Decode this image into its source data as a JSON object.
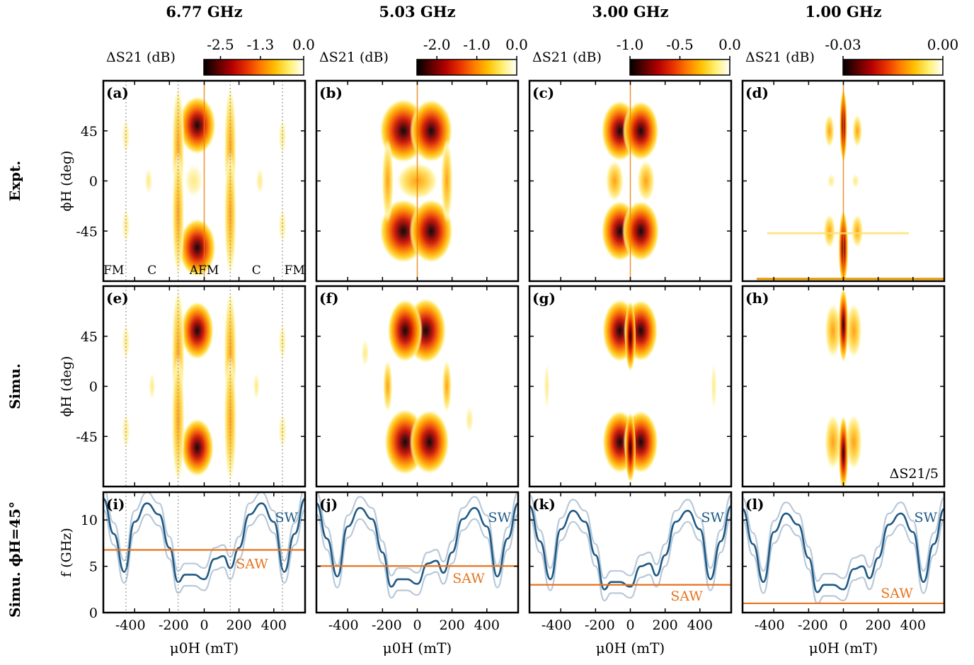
{
  "columns": [
    {
      "freq_label": "6.77 GHz",
      "cbar_label": "ΔS21 (dB)",
      "cbar_ticks": [
        "-2.5",
        "-1.3",
        "0.0"
      ],
      "cbar_range": [
        -3.0,
        0.0
      ],
      "saw_ghz": 6.77
    },
    {
      "freq_label": "5.03 GHz",
      "cbar_label": "ΔS21 (dB)",
      "cbar_ticks": [
        "-2.0",
        "-1.0",
        "0.0"
      ],
      "cbar_range": [
        -2.5,
        0.0
      ],
      "saw_ghz": 5.03
    },
    {
      "freq_label": "3.00 GHz",
      "cbar_label": "ΔS21 (dB)",
      "cbar_ticks": [
        "-1.0",
        "-0.5",
        "0.0"
      ],
      "cbar_range": [
        -1.0,
        0.0
      ],
      "saw_ghz": 3.0
    },
    {
      "freq_label": "1.00 GHz",
      "cbar_label": "ΔS21 (dB)",
      "cbar_ticks": [
        "-0.03",
        "0.00"
      ],
      "cbar_range": [
        -0.03,
        0.0
      ],
      "saw_ghz": 1.0
    }
  ],
  "row_labels": {
    "expt": "Expt.",
    "simu": "Simu.",
    "disp": "Simu. ϕH=45°"
  },
  "panel_labels": [
    "(a)",
    "(b)",
    "(c)",
    "(d)",
    "(e)",
    "(f)",
    "(g)",
    "(h)",
    "(i)",
    "(j)",
    "(k)",
    "(l)"
  ],
  "phase_labels": [
    "FM",
    "C",
    "AFM",
    "C",
    "FM"
  ],
  "phase_boundaries_mT": [
    -450,
    -150,
    150,
    450
  ],
  "h_annotation": "ΔS21/5",
  "curve_labels": {
    "sw": "SW",
    "saw": "SAW"
  },
  "axes": {
    "x_label": "μ0H (mT)",
    "x_ticks": [
      -400,
      -200,
      0,
      200,
      400
    ],
    "x_range": [
      -580,
      580
    ],
    "phi_label": "ϕH (deg)",
    "phi_ticks": [
      45,
      0,
      -45
    ],
    "phi_range": [
      -90,
      90
    ],
    "f_label": "f (GHz)",
    "f_ticks": [
      0,
      5,
      10
    ],
    "f_range": [
      0,
      13
    ]
  },
  "colors": {
    "sw": "#1f5a85",
    "sw_light": "#b9c9d9",
    "saw": "#e8731e",
    "grid_dash": "#9a9a9a",
    "colormap": [
      "#000000",
      "#5a0000",
      "#b40000",
      "#e83000",
      "#ff7a00",
      "#ffc000",
      "#fff070",
      "#ffffff"
    ]
  },
  "chart_data": {
    "type": "heatmap",
    "description_units": {
      "x": "mT",
      "y": "deg",
      "z": "dB"
    },
    "dispersion_phi_deg": 45,
    "series": [
      {
        "name": "SW",
        "x": [
          -580,
          -520,
          -460,
          -400,
          -330,
          -260,
          -200,
          -150,
          -110,
          -60,
          0,
          60,
          110,
          150,
          200,
          260,
          330,
          400,
          460,
          520,
          580
        ],
        "y": [
          12.3,
          8.5,
          4.4,
          9.8,
          11.8,
          10.6,
          7.0,
          3.3,
          4.1,
          4.1,
          3.6,
          5.8,
          6.1,
          4.8,
          7.0,
          10.6,
          11.8,
          9.8,
          4.4,
          8.5,
          12.3
        ]
      },
      {
        "name": "SAW (6.77 GHz)",
        "x": [
          -580,
          580
        ],
        "y": [
          6.77,
          6.77
        ]
      },
      {
        "name": "SAW (5.03 GHz)",
        "x": [
          -580,
          580
        ],
        "y": [
          5.03,
          5.03
        ]
      },
      {
        "name": "SAW (3.00 GHz)",
        "x": [
          -580,
          580
        ],
        "y": [
          3.0,
          3.0
        ]
      },
      {
        "name": "SAW (1.00 GHz)",
        "x": [
          -580,
          580
        ],
        "y": [
          1.0,
          1.0
        ]
      }
    ],
    "absorption_maxima": [
      {
        "panel": "(a)",
        "x": [
          -40,
          -40
        ],
        "y": [
          50,
          -60
        ],
        "z": [
          -2.5,
          -2.5
        ]
      },
      {
        "panel": "(b)",
        "x": [
          -80,
          80
        ],
        "y": [
          45,
          -45
        ],
        "z": [
          -2.0,
          -2.0
        ]
      },
      {
        "panel": "(c)",
        "x": [
          -60,
          60
        ],
        "y": [
          45,
          -45
        ],
        "z": [
          -1.0,
          -1.0
        ]
      },
      {
        "panel": "(d)",
        "x": [
          0,
          0
        ],
        "y": [
          50,
          -85
        ],
        "z": [
          -0.03,
          -0.03
        ]
      }
    ]
  }
}
